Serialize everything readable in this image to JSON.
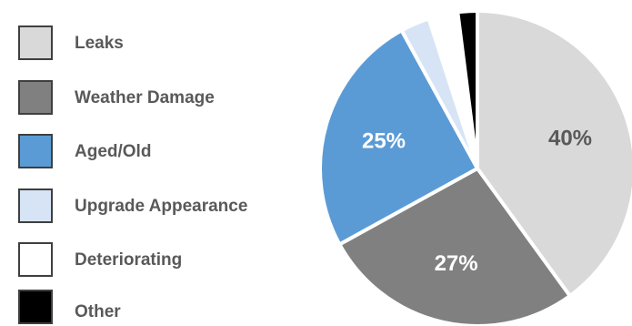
{
  "chart_data": {
    "type": "pie",
    "categories": [
      "Leaks",
      "Weather Damage",
      "Aged/Old",
      "Upgrade Appearance",
      "Deteriorating",
      "Other"
    ],
    "values": [
      40,
      27,
      25,
      3,
      3,
      2
    ],
    "data_labels": [
      "40%",
      "27%",
      "25%",
      "",
      "",
      ""
    ],
    "colors": [
      "#d9d9d9",
      "#808080",
      "#5b9bd5",
      "#d6e4f5",
      "#ffffff",
      "#000000"
    ],
    "label_colors": [
      "#595959",
      "#ffffff",
      "#ffffff",
      "#595959",
      "#595959",
      "#ffffff"
    ],
    "legend_position": "left",
    "start_angle": "top, clockwise",
    "title": "",
    "xlabel": "",
    "ylabel": ""
  }
}
